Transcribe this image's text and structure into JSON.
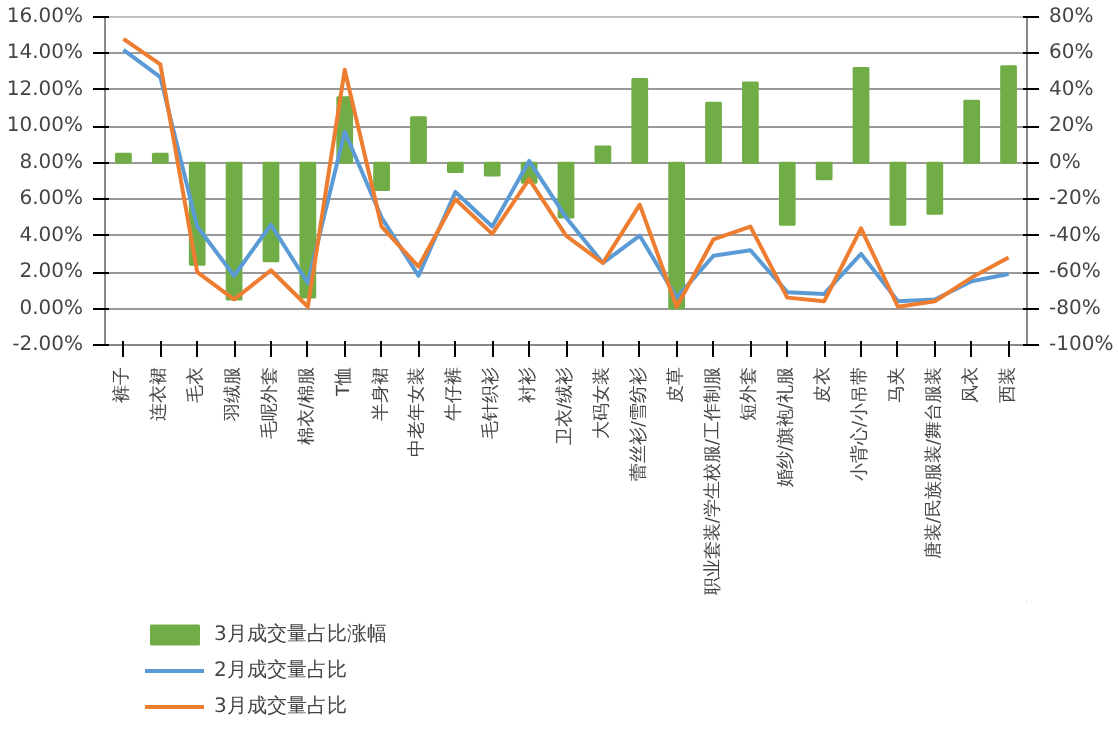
{
  "chart_data": {
    "type": "bar",
    "categories": [
      "裤子",
      "连衣裙",
      "毛衣",
      "羽绒服",
      "毛呢外套",
      "棉衣/棉服",
      "T恤",
      "半身裙",
      "中老年女装",
      "牛仔裤",
      "毛针织衫",
      "衬衫",
      "卫衣/绒衫",
      "大码女装",
      "蕾丝衫/雪纺衫",
      "皮草",
      "职业套装/学生校服/工作制服",
      "短外套",
      "婚纱/旗袍/礼服",
      "皮衣",
      "小背心/小吊带",
      "马夹",
      "唐装/民族服装/舞台服装",
      "风衣",
      "西装"
    ],
    "series": [
      {
        "name": "3月成交量占比涨幅",
        "axis": "y2",
        "color": "#70ad47",
        "values": [
          5,
          5,
          -56,
          -75,
          -54,
          -74,
          36,
          -15,
          25,
          -5,
          -7,
          -11,
          -30,
          9,
          46,
          -80,
          33,
          44,
          -34,
          -9,
          52,
          -34,
          -28,
          34,
          53
        ]
      },
      {
        "name": "2月成交量占比",
        "type": "line",
        "color": "#5b9bd5",
        "values": [
          14.2,
          12.7,
          4.5,
          1.8,
          4.6,
          1.4,
          9.7,
          5.0,
          1.8,
          6.4,
          4.5,
          8.1,
          5.0,
          2.5,
          4.0,
          0.6,
          2.9,
          3.2,
          0.9,
          0.8,
          3.0,
          0.4,
          0.5,
          1.5,
          1.9
        ]
      },
      {
        "name": "3月成交量占比",
        "type": "line",
        "color": "#ed7d31",
        "values": [
          14.8,
          13.4,
          2.0,
          0.5,
          2.1,
          0.1,
          13.1,
          4.5,
          2.3,
          6.0,
          4.1,
          7.1,
          4.0,
          2.5,
          5.7,
          0.1,
          3.8,
          4.5,
          0.6,
          0.4,
          4.4,
          0.1,
          0.4,
          1.7,
          2.8
        ]
      }
    ],
    "ylim": [
      -2,
      16
    ],
    "yticks": [
      {
        "value": -2,
        "label": "-2.00%"
      },
      {
        "value": 0,
        "label": "0.00%"
      },
      {
        "value": 2,
        "label": "2.00%"
      },
      {
        "value": 4,
        "label": "4.00%"
      },
      {
        "value": 6,
        "label": "6.00%"
      },
      {
        "value": 8,
        "label": "8.00%"
      },
      {
        "value": 10,
        "label": "10.00%"
      },
      {
        "value": 12,
        "label": "12.00%"
      },
      {
        "value": 14,
        "label": "14.00%"
      },
      {
        "value": 16,
        "label": "16.00%"
      }
    ],
    "y2lim": [
      -100,
      80
    ],
    "y2ticks": [
      {
        "value": -100,
        "label": "-100%"
      },
      {
        "value": -80,
        "label": "-80%"
      },
      {
        "value": -60,
        "label": "-60%"
      },
      {
        "value": -40,
        "label": "-40%"
      },
      {
        "value": -20,
        "label": "-20%"
      },
      {
        "value": 0,
        "label": "0%"
      },
      {
        "value": 20,
        "label": "20%"
      },
      {
        "value": 40,
        "label": "40%"
      },
      {
        "value": 60,
        "label": "60%"
      },
      {
        "value": 80,
        "label": "80%"
      }
    ],
    "grid": "y",
    "legend": "bottom left",
    "line_style": "solid"
  }
}
